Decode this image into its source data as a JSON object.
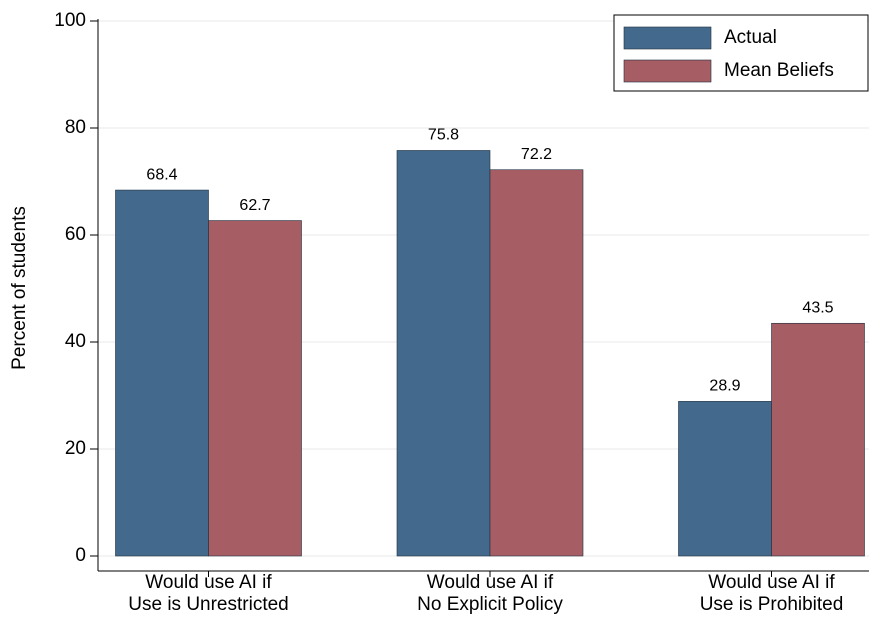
{
  "chart_data": {
    "type": "bar",
    "y_label": "Percent of students",
    "categories": [
      [
        "Would use AI if",
        "Use is Unrestricted"
      ],
      [
        "Would use AI if",
        "No Explicit Policy"
      ],
      [
        "Would use AI if",
        "Use is Prohibited"
      ]
    ],
    "series": [
      {
        "name": "Actual",
        "color": "#436a8c",
        "values": [
          68.4,
          75.8,
          28.9
        ]
      },
      {
        "name": "Mean Beliefs",
        "color": "#a65d63",
        "values": [
          62.7,
          72.2,
          43.5
        ]
      }
    ],
    "ylim": [
      0,
      100
    ],
    "yticks": [
      0,
      20,
      40,
      60,
      80,
      100
    ],
    "grid": true,
    "legend": "top-right"
  }
}
